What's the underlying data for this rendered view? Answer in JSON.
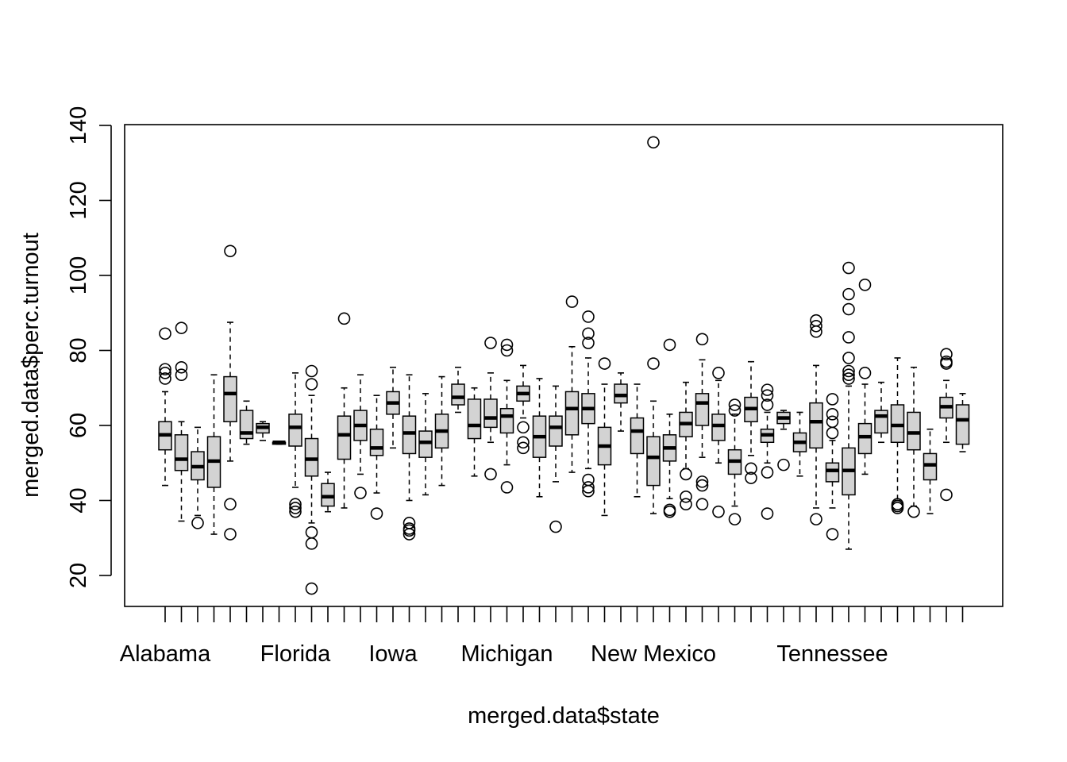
{
  "chart_data": {
    "type": "boxplot",
    "title": "",
    "xlabel": "merged.data$state",
    "ylabel": "merged.data$perc.turnout",
    "ylim": [
      12,
      140
    ],
    "yticks": [
      20,
      40,
      60,
      80,
      100,
      120,
      140
    ],
    "x_tick_labels_shown": [
      {
        "position": 1,
        "label": "Alabama"
      },
      {
        "position": 9,
        "label": "Florida"
      },
      {
        "position": 15,
        "label": "Iowa"
      },
      {
        "position": 22,
        "label": "Michigan"
      },
      {
        "position": 31,
        "label": "New Mexico"
      },
      {
        "position": 42,
        "label": "Tennessee"
      }
    ],
    "grid": false,
    "legend": "none",
    "colors": {
      "box_fill": "#d3d3d3",
      "stroke": "#000000",
      "background": "#ffffff"
    },
    "boxes": [
      {
        "index": 1,
        "whisker_low": 44.0,
        "q1": 53.5,
        "median": 57.5,
        "q3": 61.0,
        "whisker_high": 69.0,
        "outliers": [
          72.5,
          74.0,
          75.0,
          84.5
        ]
      },
      {
        "index": 2,
        "whisker_low": 34.5,
        "q1": 48.0,
        "median": 51.0,
        "q3": 57.5,
        "whisker_high": 61.0,
        "outliers": [
          73.5,
          75.5,
          86.0
        ]
      },
      {
        "index": 3,
        "whisker_low": 36.0,
        "q1": 45.5,
        "median": 49.0,
        "q3": 53.0,
        "whisker_high": 59.5,
        "outliers": [
          34.0
        ]
      },
      {
        "index": 4,
        "whisker_low": 31.0,
        "q1": 43.5,
        "median": 50.5,
        "q3": 57.0,
        "whisker_high": 73.5,
        "outliers": []
      },
      {
        "index": 5,
        "whisker_low": 50.5,
        "q1": 61.0,
        "median": 68.5,
        "q3": 73.0,
        "whisker_high": 87.5,
        "outliers": [
          31.0,
          39.0,
          106.5
        ]
      },
      {
        "index": 6,
        "whisker_low": 55.0,
        "q1": 56.5,
        "median": 58.0,
        "q3": 64.0,
        "whisker_high": 66.5,
        "outliers": []
      },
      {
        "index": 7,
        "whisker_low": 56.0,
        "q1": 58.0,
        "median": 59.5,
        "q3": 60.5,
        "whisker_high": 61.0,
        "outliers": []
      },
      {
        "index": 8,
        "whisker_low": 55.0,
        "q1": 55.0,
        "median": 55.5,
        "q3": 55.5,
        "whisker_high": 55.5,
        "outliers": []
      },
      {
        "index": 9,
        "whisker_low": 43.5,
        "q1": 54.5,
        "median": 59.5,
        "q3": 63.0,
        "whisker_high": 74.0,
        "outliers": [
          37.0,
          38.0,
          39.0
        ]
      },
      {
        "index": 10,
        "whisker_low": 34.0,
        "q1": 46.5,
        "median": 51.0,
        "q3": 56.5,
        "whisker_high": 68.0,
        "outliers": [
          16.5,
          28.5,
          31.5,
          71.0,
          74.5
        ]
      },
      {
        "index": 11,
        "whisker_low": 37.0,
        "q1": 38.5,
        "median": 41.0,
        "q3": 44.5,
        "whisker_high": 47.5,
        "outliers": []
      },
      {
        "index": 12,
        "whisker_low": 38.0,
        "q1": 51.0,
        "median": 57.5,
        "q3": 62.5,
        "whisker_high": 70.0,
        "outliers": [
          88.5
        ]
      },
      {
        "index": 13,
        "whisker_low": 47.0,
        "q1": 56.0,
        "median": 60.0,
        "q3": 64.0,
        "whisker_high": 73.5,
        "outliers": [
          42.0
        ]
      },
      {
        "index": 14,
        "whisker_low": 42.0,
        "q1": 52.0,
        "median": 54.0,
        "q3": 59.0,
        "whisker_high": 68.0,
        "outliers": [
          36.5
        ]
      },
      {
        "index": 15,
        "whisker_low": 54.0,
        "q1": 63.0,
        "median": 66.0,
        "q3": 69.0,
        "whisker_high": 75.5,
        "outliers": []
      },
      {
        "index": 16,
        "whisker_low": 40.0,
        "q1": 52.5,
        "median": 58.0,
        "q3": 62.5,
        "whisker_high": 73.5,
        "outliers": [
          31.0,
          32.0,
          32.5,
          34.0
        ]
      },
      {
        "index": 17,
        "whisker_low": 41.5,
        "q1": 51.5,
        "median": 55.5,
        "q3": 58.5,
        "whisker_high": 68.5,
        "outliers": []
      },
      {
        "index": 18,
        "whisker_low": 44.0,
        "q1": 54.0,
        "median": 58.5,
        "q3": 63.0,
        "whisker_high": 73.0,
        "outliers": []
      },
      {
        "index": 19,
        "whisker_low": 63.5,
        "q1": 65.5,
        "median": 67.5,
        "q3": 71.0,
        "whisker_high": 75.5,
        "outliers": []
      },
      {
        "index": 20,
        "whisker_low": 46.5,
        "q1": 56.5,
        "median": 60.0,
        "q3": 67.0,
        "whisker_high": 70.0,
        "outliers": []
      },
      {
        "index": 21,
        "whisker_low": 55.5,
        "q1": 59.5,
        "median": 62.0,
        "q3": 67.0,
        "whisker_high": 74.0,
        "outliers": [
          47.0,
          82.0
        ]
      },
      {
        "index": 22,
        "whisker_low": 49.5,
        "q1": 58.0,
        "median": 62.5,
        "q3": 64.5,
        "whisker_high": 72.0,
        "outliers": [
          43.5,
          80.0,
          81.5
        ]
      },
      {
        "index": 23,
        "whisker_low": 62.0,
        "q1": 66.5,
        "median": 68.5,
        "q3": 70.5,
        "whisker_high": 76.0,
        "outliers": [
          54.0,
          55.5,
          59.5
        ]
      },
      {
        "index": 24,
        "whisker_low": 41.0,
        "q1": 51.5,
        "median": 57.0,
        "q3": 62.5,
        "whisker_high": 72.5,
        "outliers": []
      },
      {
        "index": 25,
        "whisker_low": 45.0,
        "q1": 54.5,
        "median": 59.5,
        "q3": 62.5,
        "whisker_high": 70.5,
        "outliers": [
          33.0
        ]
      },
      {
        "index": 26,
        "whisker_low": 47.5,
        "q1": 57.5,
        "median": 64.5,
        "q3": 69.0,
        "whisker_high": 81.0,
        "outliers": [
          93.0
        ]
      },
      {
        "index": 27,
        "whisker_low": 48.5,
        "q1": 60.5,
        "median": 64.5,
        "q3": 68.5,
        "whisker_high": 78.0,
        "outliers": [
          42.5,
          43.5,
          45.5,
          82.0,
          84.5,
          89.0
        ]
      },
      {
        "index": 28,
        "whisker_low": 36.0,
        "q1": 49.5,
        "median": 54.5,
        "q3": 59.5,
        "whisker_high": 71.0,
        "outliers": [
          76.5
        ]
      },
      {
        "index": 29,
        "whisker_low": 58.5,
        "q1": 66.0,
        "median": 68.0,
        "q3": 71.0,
        "whisker_high": 74.0,
        "outliers": []
      },
      {
        "index": 30,
        "whisker_low": 41.0,
        "q1": 52.5,
        "median": 58.5,
        "q3": 62.0,
        "whisker_high": 71.0,
        "outliers": []
      },
      {
        "index": 31,
        "whisker_low": 36.5,
        "q1": 44.0,
        "median": 51.5,
        "q3": 57.0,
        "whisker_high": 66.5,
        "outliers": [
          76.5,
          135.5
        ]
      },
      {
        "index": 32,
        "whisker_low": 40.5,
        "q1": 50.5,
        "median": 54.0,
        "q3": 57.5,
        "whisker_high": 63.0,
        "outliers": [
          37.0,
          37.5,
          81.5
        ]
      },
      {
        "index": 33,
        "whisker_low": 48.5,
        "q1": 57.0,
        "median": 60.5,
        "q3": 63.5,
        "whisker_high": 71.5,
        "outliers": [
          39.0,
          41.0,
          47.0
        ]
      },
      {
        "index": 34,
        "whisker_low": 51.5,
        "q1": 60.0,
        "median": 66.0,
        "q3": 68.5,
        "whisker_high": 77.5,
        "outliers": [
          39.0,
          44.0,
          45.0,
          83.0
        ]
      },
      {
        "index": 35,
        "whisker_low": 50.0,
        "q1": 56.0,
        "median": 60.0,
        "q3": 63.0,
        "whisker_high": 72.0,
        "outliers": [
          37.0,
          74.0
        ]
      },
      {
        "index": 36,
        "whisker_low": 38.5,
        "q1": 47.0,
        "median": 50.5,
        "q3": 53.5,
        "whisker_high": 63.0,
        "outliers": [
          35.0,
          64.0,
          65.5
        ]
      },
      {
        "index": 37,
        "whisker_low": 52.0,
        "q1": 61.0,
        "median": 64.5,
        "q3": 67.5,
        "whisker_high": 77.0,
        "outliers": [
          46.0,
          48.5
        ]
      },
      {
        "index": 38,
        "whisker_low": 50.0,
        "q1": 55.5,
        "median": 57.5,
        "q3": 59.0,
        "whisker_high": 63.5,
        "outliers": [
          36.5,
          47.5,
          65.5,
          68.0,
          69.5
        ]
      },
      {
        "index": 39,
        "whisker_low": 59.0,
        "q1": 60.5,
        "median": 62.0,
        "q3": 63.5,
        "whisker_high": 64.0,
        "outliers": [
          49.5
        ]
      },
      {
        "index": 40,
        "whisker_low": 46.5,
        "q1": 53.0,
        "median": 55.5,
        "q3": 58.0,
        "whisker_high": 63.5,
        "outliers": []
      },
      {
        "index": 41,
        "whisker_low": 38.0,
        "q1": 54.0,
        "median": 61.0,
        "q3": 66.0,
        "whisker_high": 76.0,
        "outliers": [
          35.0,
          85.0,
          86.5,
          88.0
        ]
      },
      {
        "index": 42,
        "whisker_low": 38.0,
        "q1": 45.0,
        "median": 48.0,
        "q3": 50.0,
        "whisker_high": 56.0,
        "outliers": [
          31.0,
          58.0,
          61.0,
          63.0,
          67.0
        ]
      },
      {
        "index": 43,
        "whisker_low": 27.0,
        "q1": 41.5,
        "median": 48.0,
        "q3": 54.0,
        "whisker_high": 70.5,
        "outliers": [
          72.5,
          73.5,
          74.5,
          78.0,
          83.5,
          91.0,
          95.0,
          102.0
        ]
      },
      {
        "index": 44,
        "whisker_low": 47.0,
        "q1": 52.5,
        "median": 57.0,
        "q3": 60.5,
        "whisker_high": 71.0,
        "outliers": [
          74.0,
          97.5
        ]
      },
      {
        "index": 45,
        "whisker_low": 55.5,
        "q1": 58.0,
        "median": 62.5,
        "q3": 64.0,
        "whisker_high": 71.5,
        "outliers": []
      },
      {
        "index": 46,
        "whisker_low": 40.0,
        "q1": 55.5,
        "median": 60.0,
        "q3": 65.5,
        "whisker_high": 78.0,
        "outliers": [
          38.0,
          38.5,
          39.0
        ]
      },
      {
        "index": 47,
        "whisker_low": 38.5,
        "q1": 53.5,
        "median": 58.0,
        "q3": 63.5,
        "whisker_high": 75.5,
        "outliers": [
          37.0
        ]
      },
      {
        "index": 48,
        "whisker_low": 36.5,
        "q1": 45.5,
        "median": 49.5,
        "q3": 52.5,
        "whisker_high": 59.0,
        "outliers": []
      },
      {
        "index": 49,
        "whisker_low": 55.5,
        "q1": 62.0,
        "median": 65.0,
        "q3": 67.5,
        "whisker_high": 72.0,
        "outliers": [
          41.5,
          76.5,
          77.0,
          79.0
        ]
      },
      {
        "index": 50,
        "whisker_low": 53.0,
        "q1": 55.0,
        "median": 61.5,
        "q3": 65.5,
        "whisker_high": 68.5,
        "outliers": []
      }
    ]
  }
}
